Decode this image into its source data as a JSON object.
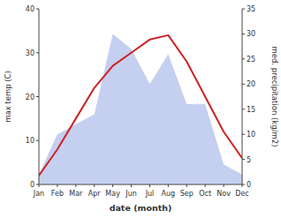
{
  "chart_data": {
    "type": "line",
    "xlabel": "date (month)",
    "ylabel": "max temp (C)",
    "y2label": "med. precipitation (kg/m2)",
    "categories": [
      "Jan",
      "Feb",
      "Mar",
      "Apr",
      "May",
      "Jun",
      "Jul",
      "Aug",
      "Sep",
      "Oct",
      "Nov",
      "Dec"
    ],
    "series": [
      {
        "type": "area",
        "axis": "y2",
        "color": "#c5cff0",
        "values": [
          2,
          10,
          12,
          14,
          30,
          27,
          20,
          26,
          16,
          16,
          4,
          2
        ]
      },
      {
        "type": "line",
        "color": "#cc2222",
        "values": [
          2,
          8,
          15,
          22,
          27,
          30,
          33,
          34,
          28,
          20,
          12,
          6
        ]
      }
    ],
    "ylim": [
      0,
      40
    ],
    "yticks": [
      0,
      10,
      20,
      30,
      40
    ],
    "y2lim": [
      0,
      35
    ],
    "y2ticks": [
      0,
      5,
      10,
      15,
      20,
      25,
      30,
      35
    ],
    "grid": false
  }
}
